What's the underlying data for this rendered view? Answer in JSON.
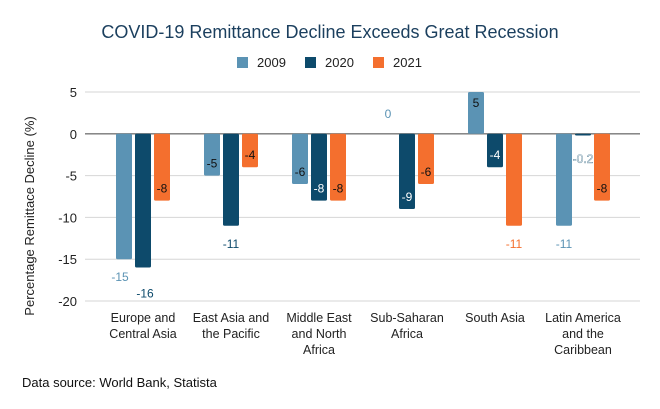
{
  "chart_data": {
    "type": "bar",
    "title": "COVID-19 Remittance Decline Exceeds Great Recession",
    "ylabel": "Percentage Remittace Decline (%)",
    "xlabel": "",
    "ylim": [
      -20,
      5
    ],
    "yticks": [
      5,
      0,
      -5,
      -10,
      -15,
      -20
    ],
    "grid": true,
    "legend_position": "top",
    "categories": [
      [
        "Europe and",
        "Central Asia"
      ],
      [
        "East Asia and",
        "the Pacific"
      ],
      [
        "Middle East",
        "and North",
        "Africa"
      ],
      [
        "Sub-Saharan",
        "Africa"
      ],
      [
        "South Asia"
      ],
      [
        "Latin America",
        "and the",
        "Caribbean"
      ]
    ],
    "series": [
      {
        "name": "2009",
        "color": "#5b93b4",
        "values": [
          -15,
          -5,
          -6,
          0,
          5,
          -11
        ]
      },
      {
        "name": "2020",
        "color": "#0d4a6b",
        "values": [
          -16,
          -11,
          -8,
          -9,
          -4,
          -0.2
        ]
      },
      {
        "name": "2021",
        "color": "#f46f2e",
        "values": [
          -8,
          -4,
          -8,
          -6,
          -11,
          -8
        ]
      }
    ]
  },
  "source": "Data source: World Bank, Statista"
}
